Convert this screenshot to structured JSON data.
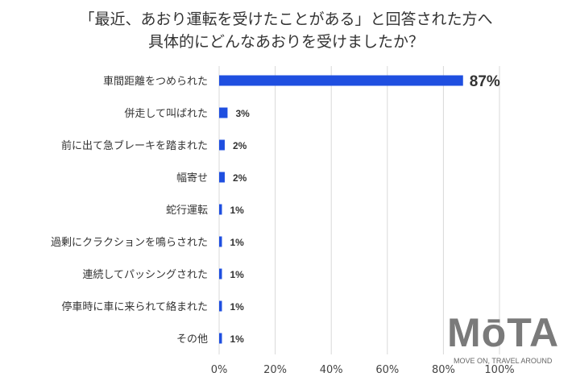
{
  "chart_data": {
    "type": "bar",
    "orientation": "horizontal",
    "title_lines": [
      "「最近、あおり運転を受けたことがある」と回答された方へ",
      "具体的にどんなあおりを受けましたか？"
    ],
    "categories": [
      "車間距離をつめられた",
      "併走して叫ばれた",
      "前に出て急ブレーキを踏まれた",
      "幅寄せ",
      "蛇行運転",
      "過剰にクラクションを鳴らされた",
      "連続してパッシングされた",
      "停車時に車に来られて絡まれた",
      "その他"
    ],
    "values": [
      87,
      3,
      2,
      2,
      1,
      1,
      1,
      1,
      1
    ],
    "data_labels": [
      "87%",
      "3%",
      "2%",
      "2%",
      "1%",
      "1%",
      "1%",
      "1%",
      "1%"
    ],
    "xlim": [
      0,
      100
    ],
    "xticks": [
      "0%",
      "20%",
      "40%",
      "60%",
      "80%",
      "100%"
    ],
    "grid": true,
    "bar_color": "#1f4fe0"
  },
  "watermark": {
    "logo": "MōTA",
    "tagline": "MOVE ON, TRAVEL AROUND"
  }
}
